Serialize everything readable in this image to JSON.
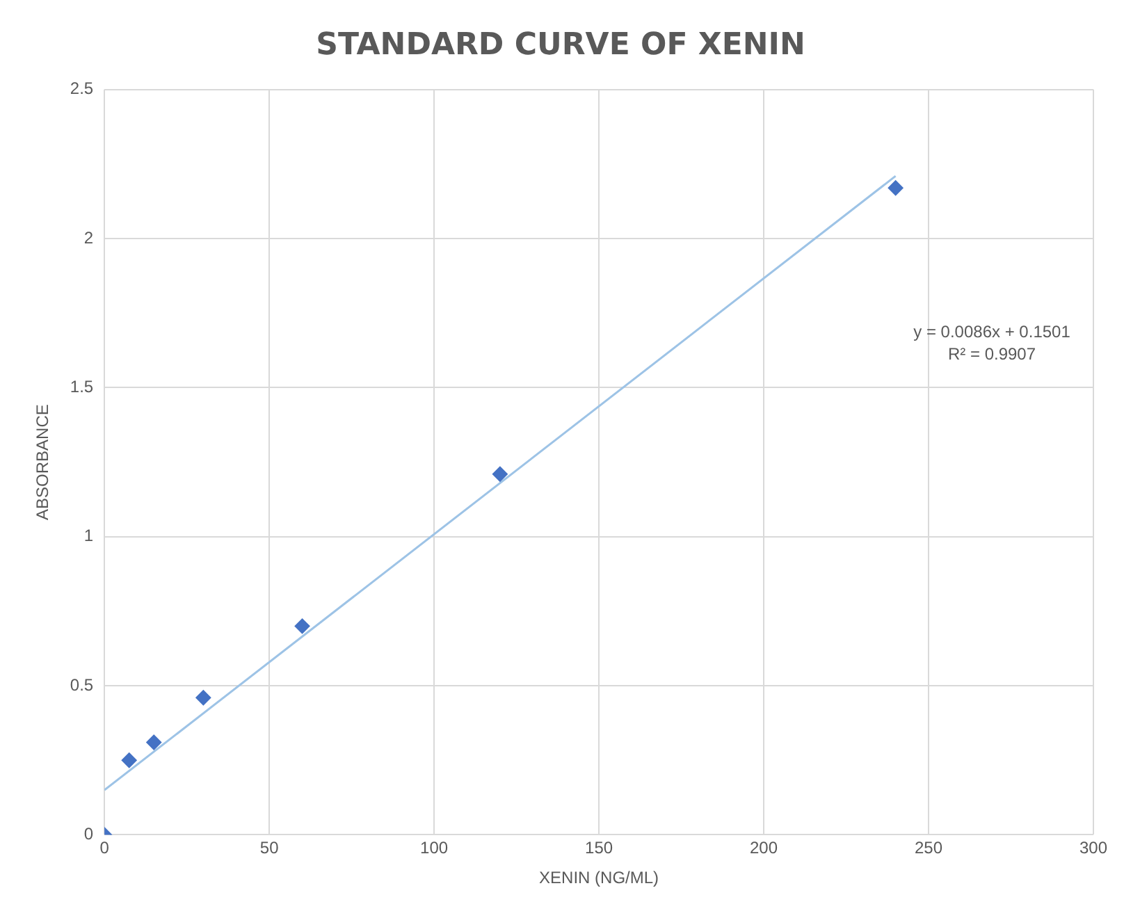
{
  "chart_data": {
    "type": "scatter",
    "title": "STANDARD CURVE OF XENIN",
    "xlabel": "XENIN (NG/ML)",
    "ylabel": "ABSORBANCE",
    "x": [
      0,
      7.5,
      15,
      30,
      60,
      120,
      240
    ],
    "series": [
      {
        "color": "#4472c4",
        "marker": "diamond",
        "values": [
          0,
          0.25,
          0.31,
          0.46,
          0.7,
          1.21,
          2.17
        ]
      },
      {
        "type": "line",
        "color": "#9dc3e6",
        "x": [
          0,
          240
        ],
        "values": [
          0.15,
          2.21
        ],
        "marker": "none"
      }
    ],
    "xlim": [
      0,
      300
    ],
    "xticks": [
      0,
      50,
      100,
      150,
      200,
      250,
      300
    ],
    "ylim": [
      0,
      2.5
    ],
    "yticks": [
      0,
      0.5,
      1,
      1.5,
      2,
      2.5
    ],
    "grid": true,
    "legend": false,
    "annotations": [
      "y = 0.0086x + 0.1501",
      "R² = 0.9907"
    ]
  }
}
